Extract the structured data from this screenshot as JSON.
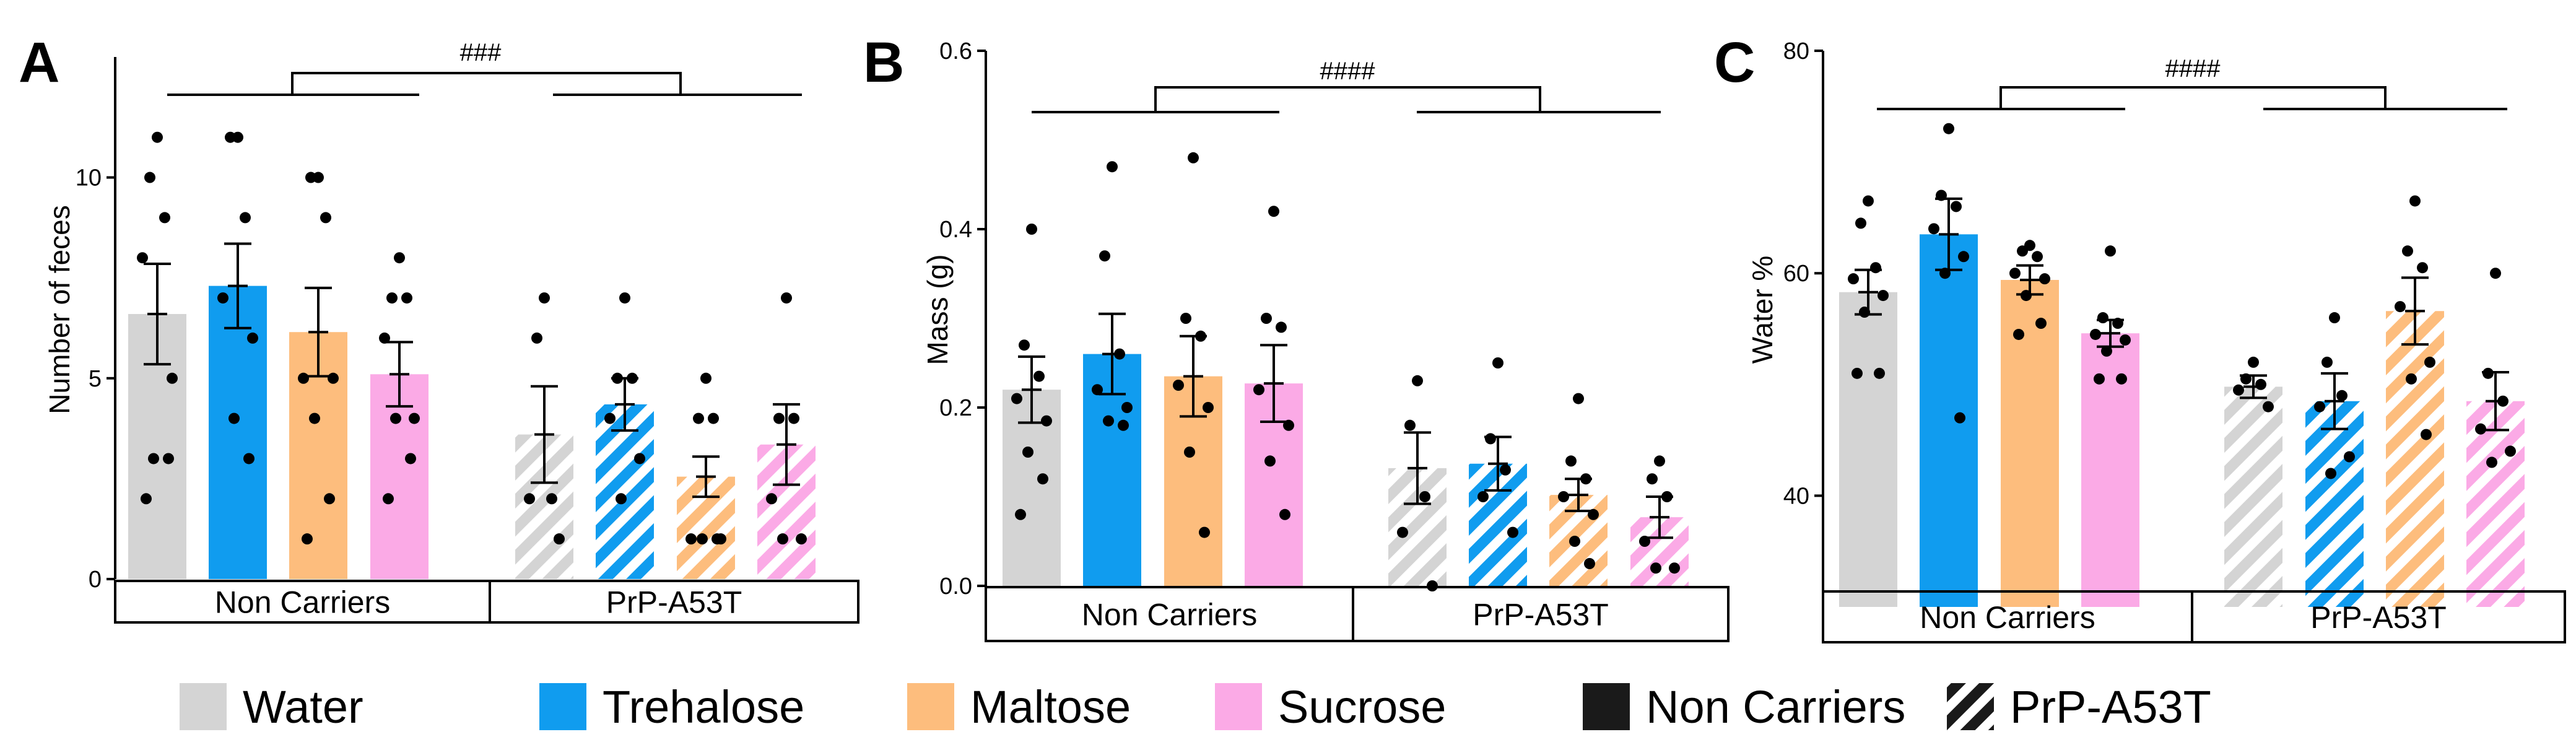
{
  "colors": {
    "Water": "#d4d4d4",
    "Trehalose": "#109cef",
    "Maltose": "#fdbd7d",
    "Sucrose": "#fbaae6",
    "Non Carriers": "#1a1a1a",
    "ink": "#000000"
  },
  "legend": {
    "items": [
      {
        "label": "Water",
        "key": "Water",
        "pattern": "solid"
      },
      {
        "label": "Trehalose",
        "key": "Trehalose",
        "pattern": "solid"
      },
      {
        "label": "Maltose",
        "key": "Maltose",
        "pattern": "solid"
      },
      {
        "label": "Sucrose",
        "key": "Sucrose",
        "pattern": "solid"
      },
      {
        "label": "Non Carriers",
        "key": "Non Carriers",
        "pattern": "solid"
      },
      {
        "label": "PrP-A53T",
        "key": "Non Carriers",
        "pattern": "hatched"
      }
    ]
  },
  "chart_data": [
    {
      "type": "bar",
      "panel_letter": "A",
      "ylabel": "Number of feces",
      "ylim": [
        0,
        13
      ],
      "yticks": [
        0,
        5,
        10
      ],
      "ytick_labels": [
        "0",
        "5",
        "10"
      ],
      "groups": [
        "Non Carriers",
        "PrP-A53T"
      ],
      "significance": "###",
      "series": [
        {
          "name": "Water",
          "values": [
            6.6,
            3.6
          ],
          "sem": [
            1.25,
            1.2
          ],
          "points": [
            [
              11,
              10,
              9,
              8,
              5,
              3,
              3,
              2
            ],
            [
              7,
              6,
              2,
              2,
              1
            ]
          ]
        },
        {
          "name": "Trehalose",
          "values": [
            7.3,
            4.35
          ],
          "sem": [
            1.05,
            0.65
          ],
          "points": [
            [
              11,
              11,
              9,
              7,
              6,
              4,
              3
            ],
            [
              7,
              5,
              5,
              4,
              3,
              2
            ]
          ]
        },
        {
          "name": "Maltose",
          "values": [
            6.15,
            2.55
          ],
          "sem": [
            1.1,
            0.5
          ],
          "points": [
            [
              10,
              10,
              9,
              5,
              5,
              4,
              2,
              1
            ],
            [
              5,
              4,
              4,
              1,
              1,
              1,
              1
            ]
          ]
        },
        {
          "name": "Sucrose",
          "values": [
            5.1,
            3.35
          ],
          "sem": [
            0.8,
            1.0
          ],
          "points": [
            [
              8,
              7,
              7,
              6,
              4,
              4,
              3,
              2
            ],
            [
              7,
              4,
              4,
              2,
              1,
              1
            ]
          ]
        }
      ]
    },
    {
      "type": "bar",
      "panel_letter": "B",
      "ylabel": "Mass (g)",
      "ylim": [
        0,
        0.6
      ],
      "yticks": [
        0,
        0.2,
        0.4,
        0.6
      ],
      "ytick_labels": [
        "0.0",
        "0.2",
        "0.4",
        "0.6"
      ],
      "groups": [
        "Non Carriers",
        "PrP-A53T"
      ],
      "significance": "####",
      "series": [
        {
          "name": "Water",
          "values": [
            0.22,
            0.132
          ],
          "sem": [
            0.037,
            0.04
          ],
          "points": [
            [
              0.4,
              0.27,
              0.235,
              0.21,
              0.185,
              0.15,
              0.12,
              0.08
            ],
            [
              0.23,
              0.18,
              0.1,
              0.06,
              0.0
            ]
          ]
        },
        {
          "name": "Trehalose",
          "values": [
            0.26,
            0.137
          ],
          "sem": [
            0.045,
            0.03
          ],
          "points": [
            [
              0.47,
              0.37,
              0.26,
              0.22,
              0.2,
              0.185,
              0.18
            ],
            [
              0.25,
              0.165,
              0.13,
              0.1,
              0.06
            ]
          ]
        },
        {
          "name": "Maltose",
          "values": [
            0.235,
            0.102
          ],
          "sem": [
            0.045,
            0.018
          ],
          "points": [
            [
              0.48,
              0.3,
              0.28,
              0.225,
              0.2,
              0.15,
              0.06
            ],
            [
              0.21,
              0.14,
              0.12,
              0.1,
              0.08,
              0.05,
              0.025
            ]
          ]
        },
        {
          "name": "Sucrose",
          "values": [
            0.227,
            0.077
          ],
          "sem": [
            0.043,
            0.023
          ],
          "points": [
            [
              0.42,
              0.3,
              0.29,
              0.22,
              0.18,
              0.14,
              0.08
            ],
            [
              0.14,
              0.12,
              0.1,
              0.05,
              0.02,
              0.02
            ]
          ]
        }
      ]
    },
    {
      "type": "bar",
      "panel_letter": "C",
      "ylabel": "Water %",
      "ylim": [
        30,
        80
      ],
      "yticks": [
        40,
        60,
        80
      ],
      "ytick_labels": [
        "40",
        "60",
        "80"
      ],
      "groups": [
        "Non Carriers",
        "PrP-A53T"
      ],
      "significance": "####",
      "series": [
        {
          "name": "Water",
          "values": [
            58.3,
            49.8
          ],
          "sem": [
            2.0,
            1.0
          ],
          "points": [
            [
              66.5,
              64.5,
              60.5,
              59.5,
              58,
              56.5,
              51,
              51
            ],
            [
              52,
              50.5,
              50,
              49.5,
              48
            ]
          ]
        },
        {
          "name": "Trehalose",
          "values": [
            63.5,
            48.5
          ],
          "sem": [
            3.2,
            2.5
          ],
          "points": [
            [
              73,
              67,
              66,
              64,
              61.5,
              60,
              47
            ],
            [
              56,
              52,
              49,
              48,
              43.5,
              42
            ]
          ]
        },
        {
          "name": "Maltose",
          "values": [
            59.4,
            56.6
          ],
          "sem": [
            1.3,
            3.0
          ],
          "points": [
            [
              62.5,
              62,
              61.5,
              60,
              59.5,
              58,
              55.5,
              54.5
            ],
            [
              66.5,
              62,
              60.5,
              57,
              52,
              50.5,
              45.5
            ]
          ]
        },
        {
          "name": "Sucrose",
          "values": [
            54.6,
            48.5
          ],
          "sem": [
            1.2,
            2.6
          ],
          "points": [
            [
              62,
              56,
              55.5,
              54.5,
              54,
              53,
              50.5,
              50.5
            ],
            [
              60,
              51,
              48.5,
              46,
              44,
              43
            ]
          ]
        }
      ]
    }
  ]
}
